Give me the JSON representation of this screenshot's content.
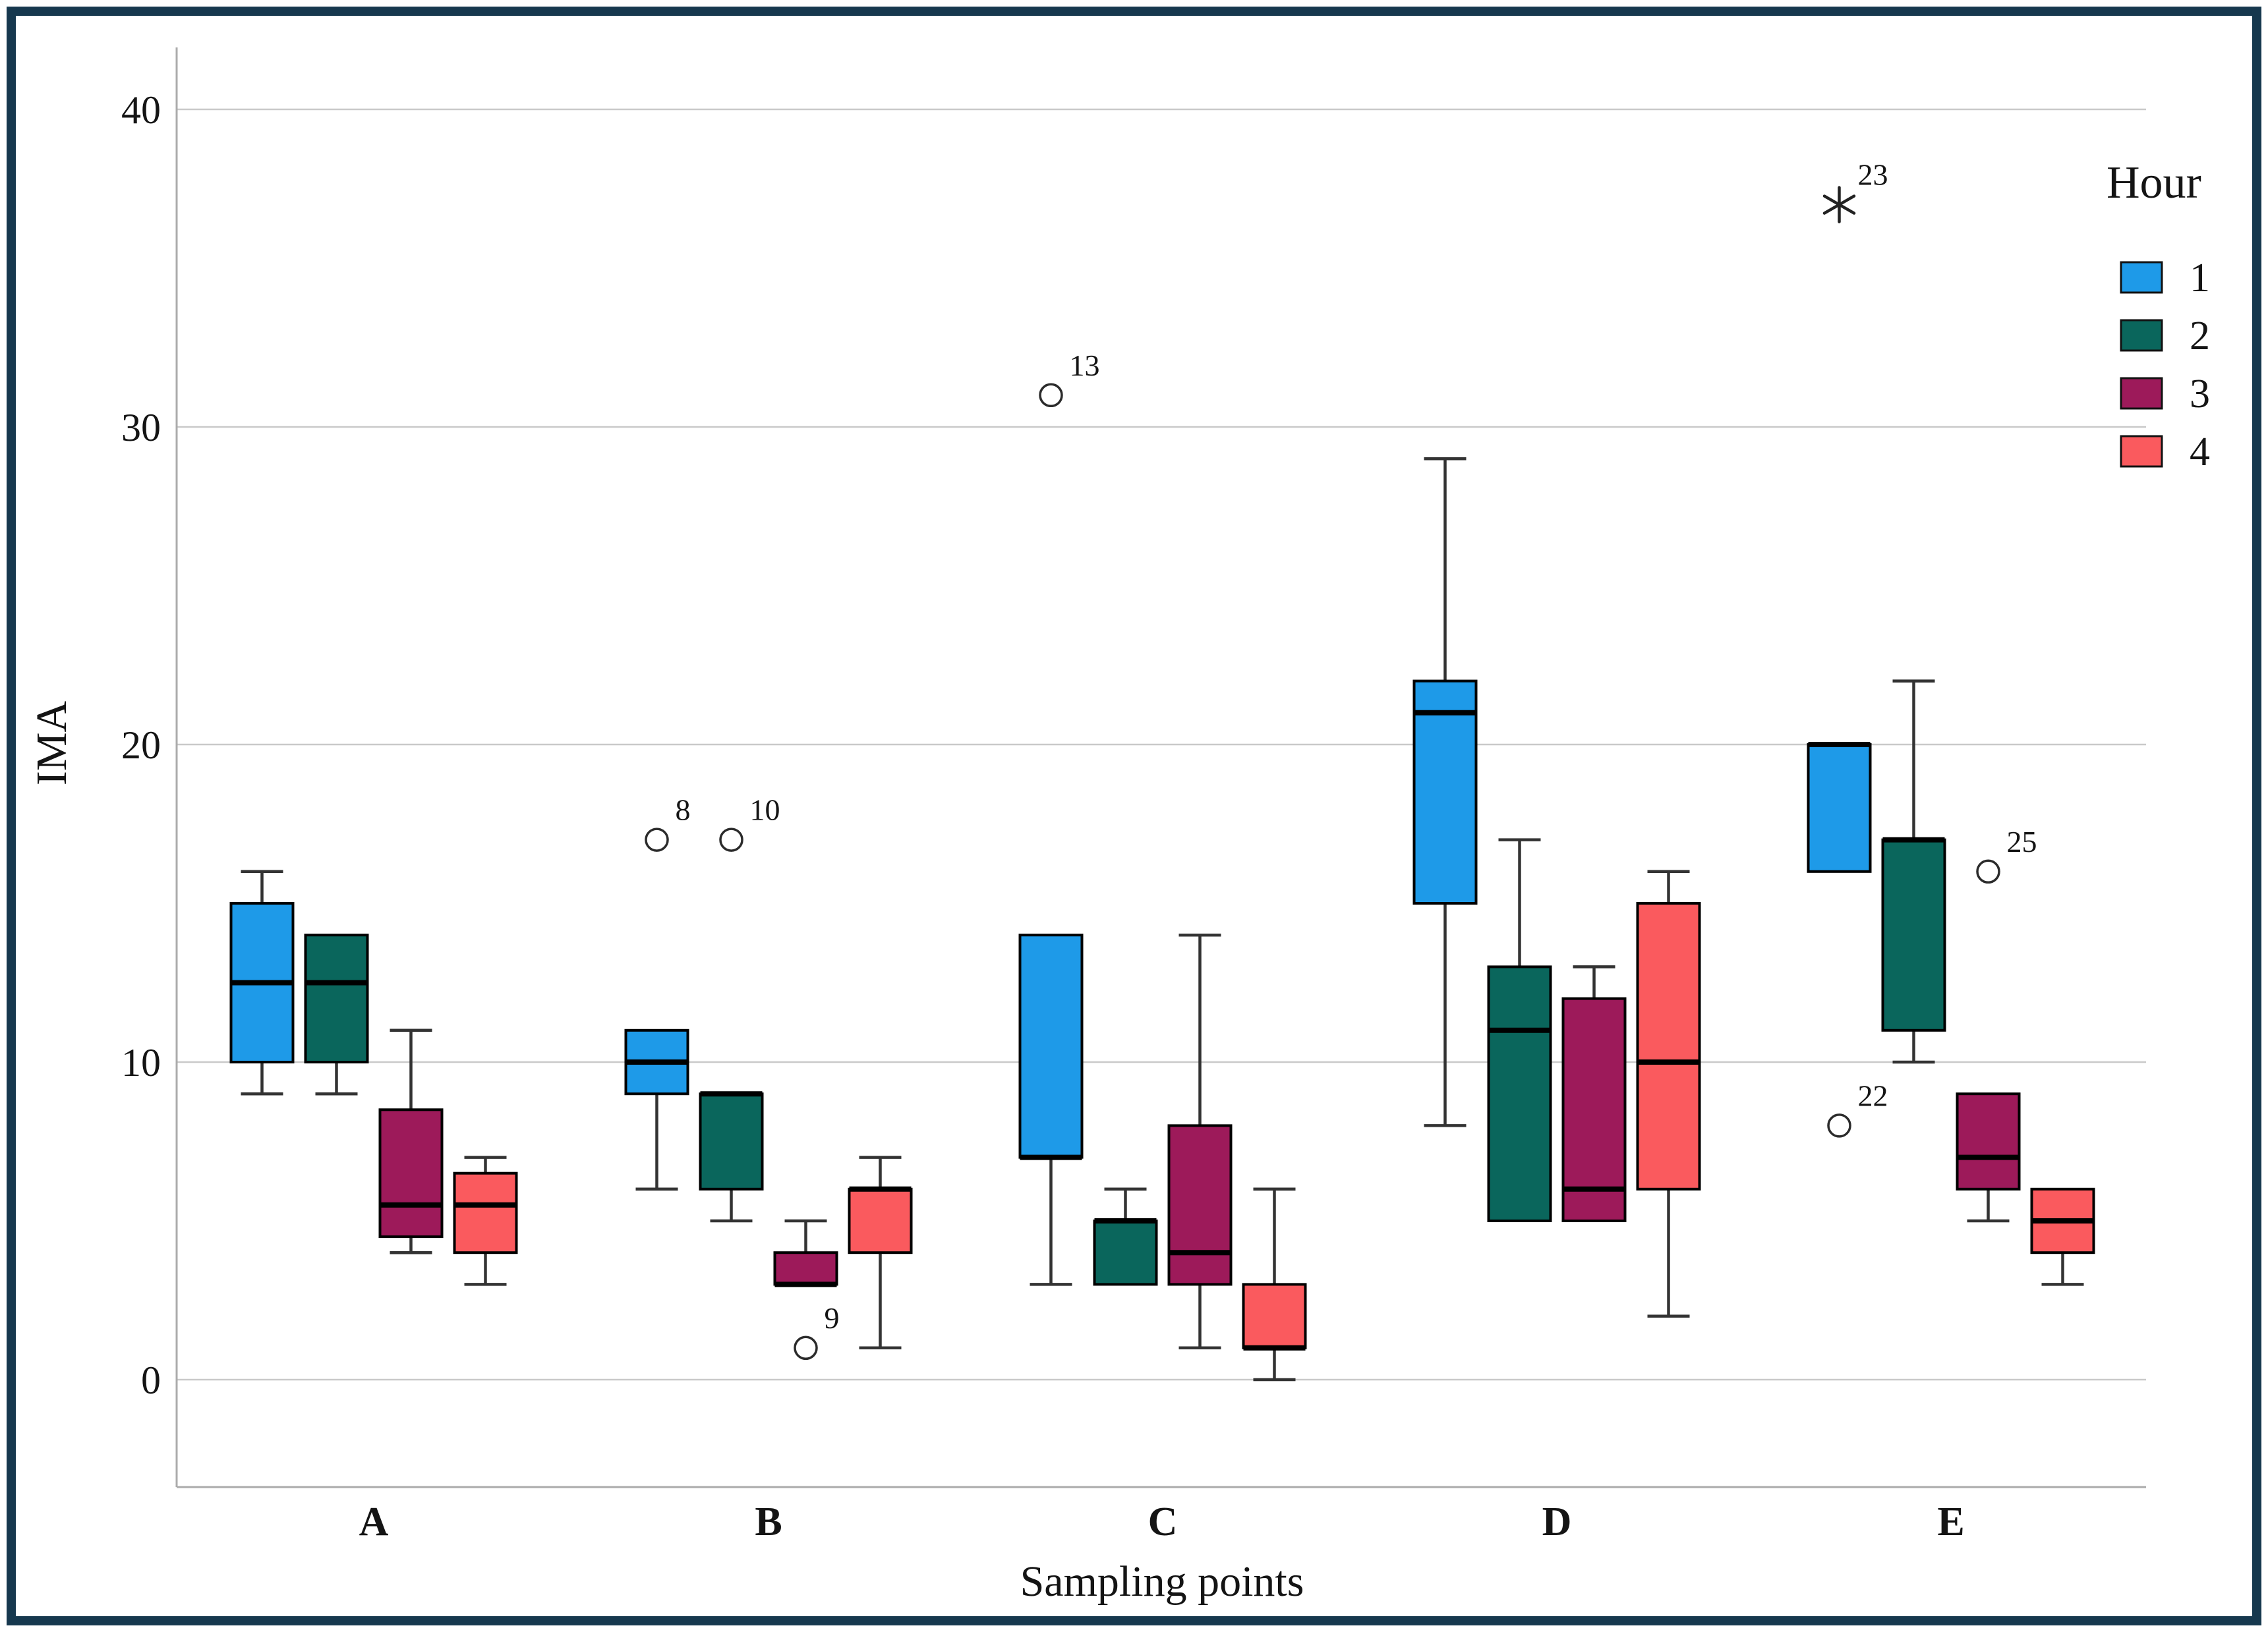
{
  "frame": {
    "border_color": "#16384E",
    "background": "#FFFFFF"
  },
  "chart_data": {
    "type": "grouped_boxplot",
    "title": "",
    "xlabel": "Sampling points",
    "ylabel": "IMA",
    "legend_title": "Hour",
    "legend_position": "right",
    "grid": true,
    "categories": [
      "A",
      "B",
      "C",
      "D",
      "E"
    ],
    "yticks": [
      0,
      10,
      20,
      30,
      40
    ],
    "ylim": [
      -3.5,
      42
    ],
    "colors": {
      "grid": "#C9C9C9",
      "axis": "#ABABAB",
      "whisker": "#333333",
      "box_border": "#000000",
      "median": "#000000",
      "outlier_stroke": "#2B2B2B",
      "outlier_fill": "#FFFFFF",
      "text": "#141414"
    },
    "series": [
      {
        "name": "1",
        "color": "#1E9AE8",
        "boxes": [
          {
            "low": 9,
            "q1": 10,
            "median": 12.5,
            "q3": 15,
            "high": 16,
            "outliers": []
          },
          {
            "low": 6,
            "q1": 9,
            "median": 10,
            "q3": 11,
            "high": 11,
            "outliers": [
              {
                "value": 17,
                "label": "8",
                "marker": "circle"
              }
            ]
          },
          {
            "low": 3,
            "q1": 7,
            "median": 7,
            "q3": 14,
            "high": 14,
            "outliers": [
              {
                "value": 31,
                "label": "13",
                "marker": "circle"
              }
            ]
          },
          {
            "low": 8,
            "q1": 15,
            "median": 21,
            "q3": 22,
            "high": 29,
            "outliers": []
          },
          {
            "low": 16,
            "q1": 16,
            "median": 20,
            "q3": 20,
            "high": 20,
            "outliers": [
              {
                "value": 37,
                "label": "23",
                "marker": "star"
              },
              {
                "value": 8,
                "label": "22",
                "marker": "circle"
              }
            ]
          }
        ]
      },
      {
        "name": "2",
        "color": "#0A665C",
        "boxes": [
          {
            "low": 9,
            "q1": 10,
            "median": 12.5,
            "q3": 14,
            "high": 14,
            "outliers": []
          },
          {
            "low": 5,
            "q1": 6,
            "median": 9,
            "q3": 9,
            "high": 9,
            "outliers": [
              {
                "value": 17,
                "label": "10",
                "marker": "circle"
              }
            ]
          },
          {
            "low": 3,
            "q1": 3,
            "median": 5,
            "q3": 5,
            "high": 6,
            "outliers": []
          },
          {
            "low": 5,
            "q1": 5,
            "median": 11,
            "q3": 13,
            "high": 17,
            "outliers": []
          },
          {
            "low": 10,
            "q1": 11,
            "median": 17,
            "q3": 17,
            "high": 22,
            "outliers": []
          }
        ]
      },
      {
        "name": "3",
        "color": "#9D1A5A",
        "boxes": [
          {
            "low": 4,
            "q1": 4.5,
            "median": 5.5,
            "q3": 8.5,
            "high": 11,
            "outliers": []
          },
          {
            "low": 3,
            "q1": 3,
            "median": 3,
            "q3": 4,
            "high": 5,
            "outliers": [
              {
                "value": 1,
                "label": "9",
                "marker": "circle"
              }
            ]
          },
          {
            "low": 1,
            "q1": 3,
            "median": 4,
            "q3": 8,
            "high": 14,
            "outliers": []
          },
          {
            "low": 5,
            "q1": 5,
            "median": 6,
            "q3": 12,
            "high": 13,
            "outliers": []
          },
          {
            "low": 5,
            "q1": 6,
            "median": 7,
            "q3": 9,
            "high": 9,
            "outliers": [
              {
                "value": 16,
                "label": "25",
                "marker": "circle"
              }
            ]
          }
        ]
      },
      {
        "name": "4",
        "color": "#FA5A5E",
        "boxes": [
          {
            "low": 3,
            "q1": 4,
            "median": 5.5,
            "q3": 6.5,
            "high": 7,
            "outliers": []
          },
          {
            "low": 1,
            "q1": 4,
            "median": 6,
            "q3": 6,
            "high": 7,
            "outliers": []
          },
          {
            "low": 0,
            "q1": 1,
            "median": 1,
            "q3": 3,
            "high": 6,
            "outliers": []
          },
          {
            "low": 2,
            "q1": 6,
            "median": 10,
            "q3": 15,
            "high": 16,
            "outliers": []
          },
          {
            "low": 3,
            "q1": 4,
            "median": 5,
            "q3": 6,
            "high": 6,
            "outliers": []
          }
        ]
      }
    ]
  }
}
